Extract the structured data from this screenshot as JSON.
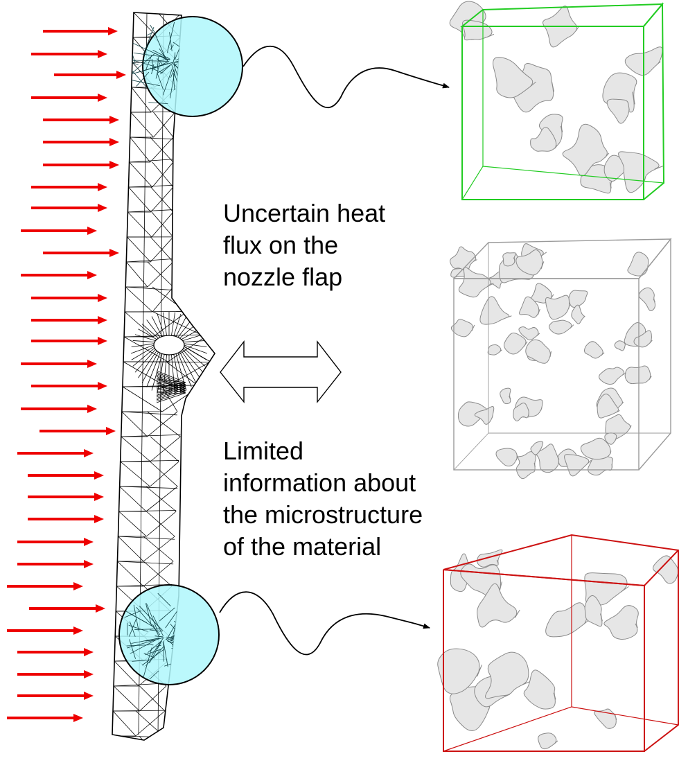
{
  "annotations": {
    "heat_flux": [
      "Uncertain heat",
      "flux on the",
      "nozzle flap"
    ],
    "microstructure": [
      "Limited",
      "information about",
      "the microstructure",
      "of the material"
    ]
  },
  "colors": {
    "arrow": "#ee0000",
    "zoom_circle": "#aff7fb",
    "mesh": "#000000",
    "cube_top": "#22cc22",
    "cube_middle": "#9a9a9a",
    "cube_bottom": "#cc1111",
    "blob_fill": "#e6e6e6",
    "blob_edge": "#8a8a8a"
  },
  "icons": {
    "heat_arrows": "right-arrow-icon",
    "double_arrow": "left-right-arrow-icon",
    "connector": "wavy-arrow-icon"
  }
}
